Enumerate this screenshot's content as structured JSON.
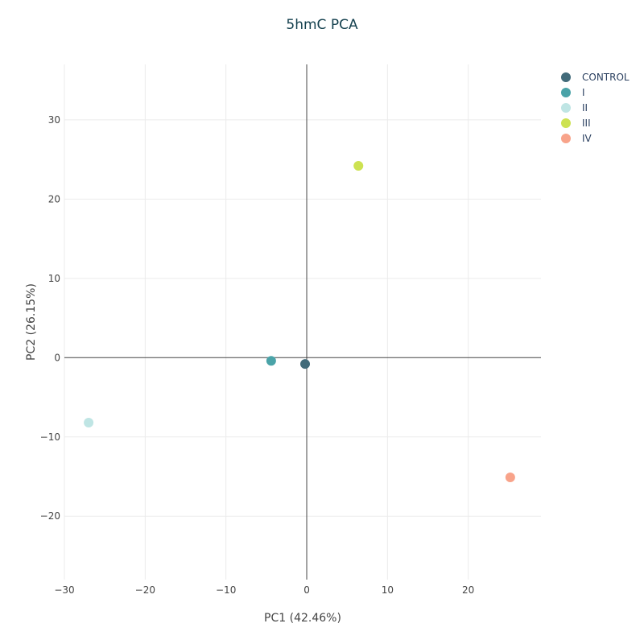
{
  "chart_data": {
    "type": "scatter",
    "title": "5hmC PCA",
    "xlabel": "PC1 (42.46%)",
    "ylabel": "PC2 (26.15%)",
    "xlim": [
      -30,
      29
    ],
    "ylim": [
      -28,
      37
    ],
    "xticks": [
      -30,
      -20,
      -10,
      0,
      10,
      20
    ],
    "yticks": [
      -20,
      -10,
      0,
      10,
      20,
      30
    ],
    "grid": true,
    "legend_position": "top-right",
    "series": [
      {
        "name": "CONTROL",
        "color": "#426b7a",
        "x": [
          -0.2
        ],
        "y": [
          -0.8
        ]
      },
      {
        "name": "I",
        "color": "#4aa3a8",
        "x": [
          -4.4
        ],
        "y": [
          -0.4
        ]
      },
      {
        "name": "II",
        "color": "#bfe5e4",
        "x": [
          -27.0
        ],
        "y": [
          -8.2
        ]
      },
      {
        "name": "III",
        "color": "#cde252",
        "x": [
          6.4
        ],
        "y": [
          24.2
        ]
      },
      {
        "name": "IV",
        "color": "#f8a38a",
        "x": [
          25.2
        ],
        "y": [
          -15.1
        ]
      }
    ]
  }
}
